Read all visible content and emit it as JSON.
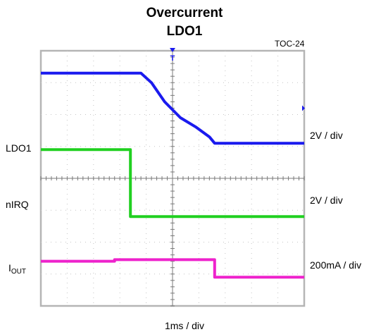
{
  "chart_data": {
    "type": "line",
    "title": "Overcurrent",
    "subtitle": "LDO1",
    "reference": "TOC-24",
    "xlabel": "1ms / div",
    "grid": true,
    "x_divisions": 10,
    "y_divisions": 8,
    "x_range_div": [
      -5,
      5
    ],
    "trigger_marker": "T",
    "series": [
      {
        "name": "LDO1",
        "color": "#1a1aee",
        "scale": "2V / div",
        "x_div": [
          -5,
          -1.2,
          -0.8,
          -0.3,
          0.3,
          0.9,
          1.4,
          1.6,
          5
        ],
        "y_div": [
          3.3,
          3.3,
          3.0,
          2.4,
          1.9,
          1.6,
          1.3,
          1.1,
          1.1
        ]
      },
      {
        "name": "nIRQ",
        "color": "#20d020",
        "scale": "2V / div",
        "x_div": [
          -5,
          -1.6,
          -1.6,
          5
        ],
        "y_div": [
          0.9,
          0.9,
          -1.2,
          -1.2
        ]
      },
      {
        "name": "IOUT",
        "label_main": "I",
        "label_sub": "OUT",
        "color": "#ee22cc",
        "scale": "200mA / div",
        "x_div": [
          -5,
          -2.2,
          -2.2,
          1.6,
          1.6,
          5
        ],
        "y_div": [
          -2.6,
          -2.6,
          -2.55,
          -2.55,
          -3.1,
          -3.1
        ]
      }
    ]
  }
}
